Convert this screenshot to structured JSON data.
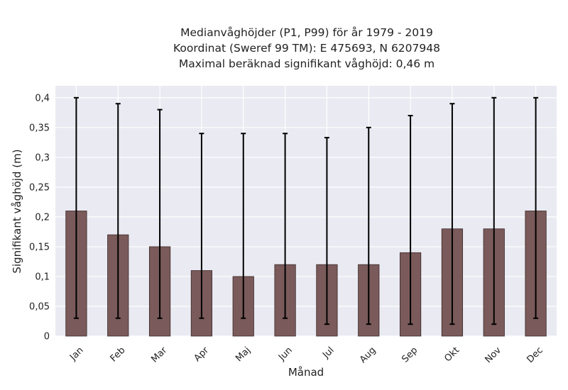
{
  "chart_data": {
    "type": "bar",
    "title_lines": [
      "Medianvåghöjder (P1, P99) för år 1979 - 2019",
      "Koordinat (Sweref 99 TM): E 475693, N 6207948",
      "Maximal beräknad signifikant våghöjd: 0,46 m"
    ],
    "xlabel": "Månad",
    "ylabel": "Signifikant våghöjd (m)",
    "categories": [
      "Jan",
      "Feb",
      "Mar",
      "Apr",
      "Maj",
      "Jun",
      "Jul",
      "Aug",
      "Sep",
      "Okt",
      "Nov",
      "Dec"
    ],
    "values": [
      0.21,
      0.17,
      0.15,
      0.11,
      0.1,
      0.12,
      0.12,
      0.12,
      0.14,
      0.18,
      0.18,
      0.21
    ],
    "p1": [
      0.03,
      0.03,
      0.03,
      0.03,
      0.03,
      0.03,
      0.02,
      0.02,
      0.02,
      0.02,
      0.02,
      0.03
    ],
    "p99": [
      0.4,
      0.39,
      0.38,
      0.34,
      0.34,
      0.34,
      0.333,
      0.35,
      0.37,
      0.39,
      0.4,
      0.4
    ],
    "ylim": [
      0,
      0.42
    ],
    "yticks": [
      0,
      0.05,
      0.1,
      0.15,
      0.2,
      0.25,
      0.3,
      0.35,
      0.4
    ],
    "ytick_labels": [
      "0",
      "0,05",
      "0,1",
      "0,15",
      "0,2",
      "0,25",
      "0,3",
      "0,35",
      "0,4"
    ],
    "grid": true,
    "colors": {
      "bar": "#7a5a5a",
      "bar_edge": "#3a2a2a",
      "errorbar": "#000000",
      "plot_bg": "#eaeaf2",
      "grid": "#ffffff"
    }
  }
}
